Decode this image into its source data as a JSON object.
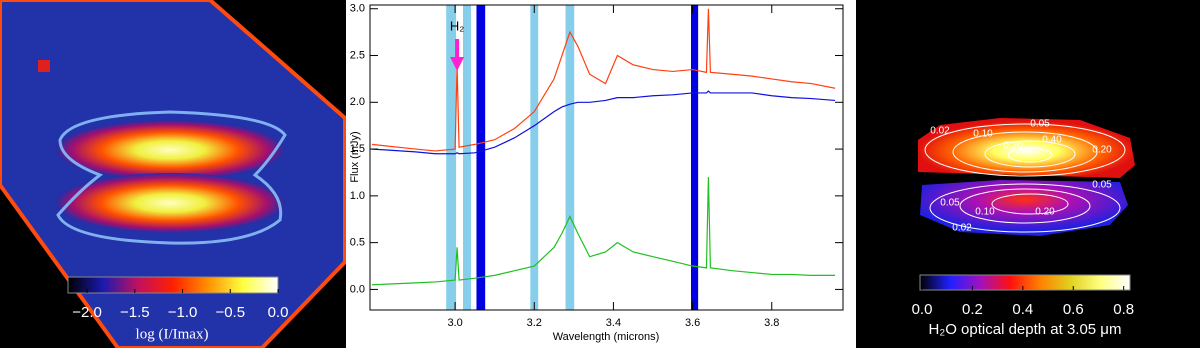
{
  "chart_data": [
    {
      "type": "image",
      "colorbar_label": "log (I/Imax)",
      "clim": [
        -2.2,
        0.0
      ],
      "colormap": [
        "#000000",
        "#1a1ab0",
        "#c01060",
        "#ff2000",
        "#ff9000",
        "#ffff40",
        "#ffffff"
      ],
      "cticks": [
        {
          "value": -2.0,
          "label": "−2.0"
        },
        {
          "value": -1.5,
          "label": "−1.5"
        },
        {
          "value": -1.0,
          "label": "−1.0"
        },
        {
          "value": -0.5,
          "label": "−0.5"
        },
        {
          "value": 0.0,
          "label": "0.0"
        }
      ]
    },
    {
      "type": "line",
      "ylabel": "Flux (mJy)",
      "xlabel": "Wavelength (microns)",
      "annotation": "H₂",
      "annotation_x": 3.005,
      "xlim": [
        2.785,
        3.98
      ],
      "ylim": [
        -0.22,
        3.04
      ],
      "xticks": [
        {
          "value": 3.0,
          "label": "3.0"
        },
        3.2,
        3.4,
        3.6,
        3.8
      ],
      "yticks": [
        {
          "value": 0.0,
          "label": "0.0"
        },
        0.5,
        {
          "value": 1.0,
          "label": "1.0"
        },
        1.5,
        {
          "value": 2.0,
          "label": "2.0"
        },
        2.5,
        {
          "value": 3.0,
          "label": "3.0"
        }
      ],
      "bands": [
        {
          "center": 2.99,
          "width": 0.025,
          "color": "#87ceeb"
        },
        {
          "center": 3.03,
          "width": 0.02,
          "color": "#87ceeb"
        },
        {
          "center": 3.065,
          "width": 0.022,
          "color": "#0000e0"
        },
        {
          "center": 3.2,
          "width": 0.02,
          "color": "#87ceeb"
        },
        {
          "center": 3.29,
          "width": 0.022,
          "color": "#87ceeb"
        },
        {
          "center": 3.605,
          "width": 0.018,
          "color": "#0000e0"
        }
      ],
      "x": [
        2.79,
        2.9,
        2.95,
        3.0,
        3.005,
        3.01,
        3.05,
        3.1,
        3.15,
        3.2,
        3.25,
        3.27,
        3.29,
        3.31,
        3.34,
        3.38,
        3.41,
        3.45,
        3.5,
        3.55,
        3.6,
        3.635,
        3.64,
        3.645,
        3.7,
        3.75,
        3.8,
        3.85,
        3.9,
        3.96
      ],
      "series": [
        {
          "color": "#ff4010",
          "values": [
            1.55,
            1.5,
            1.48,
            1.5,
            2.4,
            1.52,
            1.55,
            1.6,
            1.72,
            1.9,
            2.25,
            2.5,
            2.75,
            2.6,
            2.3,
            2.2,
            2.5,
            2.4,
            2.35,
            2.33,
            2.35,
            2.32,
            3.0,
            2.32,
            2.3,
            2.28,
            2.25,
            2.22,
            2.2,
            2.15
          ]
        },
        {
          "color": "#1010e0",
          "values": [
            1.5,
            1.47,
            1.45,
            1.45,
            1.46,
            1.45,
            1.46,
            1.52,
            1.62,
            1.75,
            1.9,
            1.95,
            1.98,
            2.0,
            2.0,
            2.02,
            2.05,
            2.05,
            2.07,
            2.08,
            2.1,
            2.1,
            2.12,
            2.1,
            2.1,
            2.1,
            2.07,
            2.05,
            2.04,
            2.02
          ]
        },
        {
          "color": "#20c020",
          "values": [
            0.05,
            0.07,
            0.08,
            0.1,
            0.45,
            0.1,
            0.12,
            0.15,
            0.2,
            0.25,
            0.45,
            0.6,
            0.78,
            0.6,
            0.35,
            0.4,
            0.5,
            0.4,
            0.35,
            0.3,
            0.25,
            0.23,
            1.2,
            0.23,
            0.2,
            0.18,
            0.16,
            0.16,
            0.15,
            0.15
          ]
        }
      ]
    },
    {
      "type": "image",
      "colorbar_label": "H₂O optical depth at 3.05 μm",
      "clim": [
        -0.008,
        0.825
      ],
      "colormap": [
        "#000000",
        "#2020ff",
        "#a010c0",
        "#ff1010",
        "#ff8000",
        "#e0d020",
        "#ffff80",
        "#ffffff"
      ],
      "cticks": [
        {
          "value": 0.0,
          "label": "0.0"
        },
        0.2,
        0.4,
        0.6,
        0.8
      ],
      "contour_labels": [
        {
          "value": 0.02,
          "label": "0.02"
        },
        {
          "value": 0.1,
          "label": "0.10"
        },
        0.05,
        {
          "value": 0.2,
          "label": "0.20"
        },
        {
          "value": 0.4,
          "label": "0.40"
        },
        {
          "value": 0.2,
          "label": "0.20"
        },
        0.05,
        0.05,
        {
          "value": 0.1,
          "label": "0.10"
        },
        {
          "value": 0.2,
          "label": "0.20"
        },
        {
          "value": 0.02,
          "label": "0.02"
        }
      ]
    }
  ]
}
